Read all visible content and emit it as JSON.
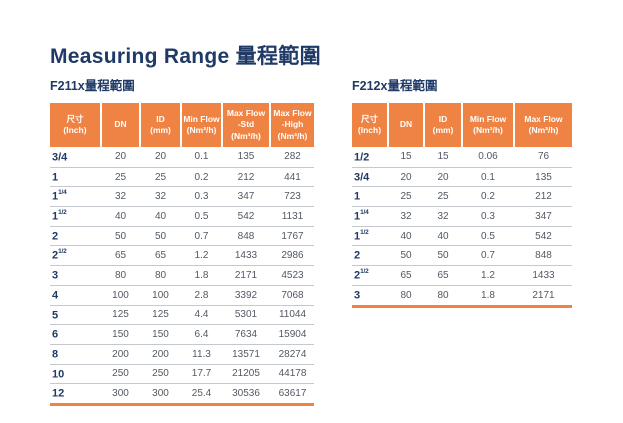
{
  "page": {
    "title": "Measuring Range 量程範圍"
  },
  "colors": {
    "accent_orange": "#EF8344",
    "heading_navy": "#1F3A66",
    "body_text": "#525963",
    "row_divider": "#C4C9CF"
  },
  "tables": {
    "f211x": {
      "caption": "F211x量程範圍",
      "headers": [
        "尺寸\n(Inch)",
        "DN",
        "ID\n(mm)",
        "Min Flow\n(Nm³/h)",
        "Max Flow\n-Std\n(Nm³/h)",
        "Max Flow\n-High\n(Nm³/h)"
      ],
      "rows": [
        {
          "size": "3/4",
          "frac": "",
          "dn": "20",
          "id": "20",
          "min": "0.1",
          "std": "135",
          "high": "282"
        },
        {
          "size": "1",
          "frac": "",
          "dn": "25",
          "id": "25",
          "min": "0.2",
          "std": "212",
          "high": "441"
        },
        {
          "size": "1",
          "frac": "1/4",
          "dn": "32",
          "id": "32",
          "min": "0.3",
          "std": "347",
          "high": "723"
        },
        {
          "size": "1",
          "frac": "1/2",
          "dn": "40",
          "id": "40",
          "min": "0.5",
          "std": "542",
          "high": "1131"
        },
        {
          "size": "2",
          "frac": "",
          "dn": "50",
          "id": "50",
          "min": "0.7",
          "std": "848",
          "high": "1767"
        },
        {
          "size": "2",
          "frac": "1/2",
          "dn": "65",
          "id": "65",
          "min": "1.2",
          "std": "1433",
          "high": "2986"
        },
        {
          "size": "3",
          "frac": "",
          "dn": "80",
          "id": "80",
          "min": "1.8",
          "std": "2171",
          "high": "4523"
        },
        {
          "size": "4",
          "frac": "",
          "dn": "100",
          "id": "100",
          "min": "2.8",
          "std": "3392",
          "high": "7068"
        },
        {
          "size": "5",
          "frac": "",
          "dn": "125",
          "id": "125",
          "min": "4.4",
          "std": "5301",
          "high": "11044"
        },
        {
          "size": "6",
          "frac": "",
          "dn": "150",
          "id": "150",
          "min": "6.4",
          "std": "7634",
          "high": "15904"
        },
        {
          "size": "8",
          "frac": "",
          "dn": "200",
          "id": "200",
          "min": "11.3",
          "std": "13571",
          "high": "28274"
        },
        {
          "size": "10",
          "frac": "",
          "dn": "250",
          "id": "250",
          "min": "17.7",
          "std": "21205",
          "high": "44178"
        },
        {
          "size": "12",
          "frac": "",
          "dn": "300",
          "id": "300",
          "min": "25.4",
          "std": "30536",
          "high": "63617"
        }
      ]
    },
    "f212x": {
      "caption": "F212x量程範圍",
      "headers": [
        "尺寸\n(Inch)",
        "DN",
        "ID\n(mm)",
        "Min Flow\n(Nm³/h)",
        "Max Flow\n(Nm³/h)"
      ],
      "rows": [
        {
          "size": "1/2",
          "frac": "",
          "dn": "15",
          "id": "15",
          "min": "0.06",
          "max": "76"
        },
        {
          "size": "3/4",
          "frac": "",
          "dn": "20",
          "id": "20",
          "min": "0.1",
          "max": "135"
        },
        {
          "size": "1",
          "frac": "",
          "dn": "25",
          "id": "25",
          "min": "0.2",
          "max": "212"
        },
        {
          "size": "1",
          "frac": "1/4",
          "dn": "32",
          "id": "32",
          "min": "0.3",
          "max": "347"
        },
        {
          "size": "1",
          "frac": "1/2",
          "dn": "40",
          "id": "40",
          "min": "0.5",
          "max": "542"
        },
        {
          "size": "2",
          "frac": "",
          "dn": "50",
          "id": "50",
          "min": "0.7",
          "max": "848"
        },
        {
          "size": "2",
          "frac": "1/2",
          "dn": "65",
          "id": "65",
          "min": "1.2",
          "max": "1433"
        },
        {
          "size": "3",
          "frac": "",
          "dn": "80",
          "id": "80",
          "min": "1.8",
          "max": "2171"
        }
      ]
    }
  }
}
